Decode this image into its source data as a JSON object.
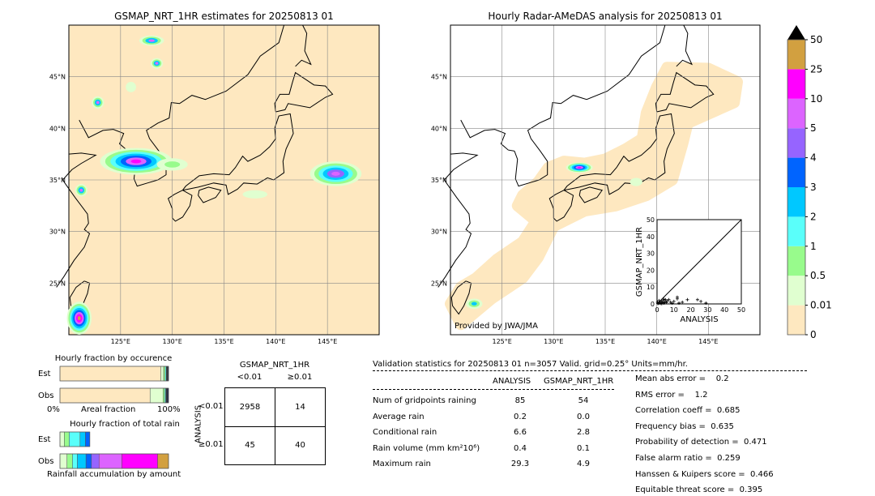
{
  "left_map": {
    "title": "GSMAP_NRT_1HR estimates for 20250813 01"
  },
  "right_map": {
    "title": "Hourly Radar-AMeDAS analysis for 20250813 01",
    "credit": "Provided by JWA/JMA"
  },
  "map_axes": {
    "lon_ticks": [
      "125°E",
      "130°E",
      "135°E",
      "140°E",
      "145°E"
    ],
    "lat_ticks": [
      "45°N",
      "40°N",
      "35°N",
      "30°N",
      "25°N"
    ],
    "lon_values": [
      125,
      130,
      135,
      140,
      145
    ],
    "lat_values": [
      45,
      40,
      35,
      30,
      25
    ],
    "extent": {
      "lon": [
        120,
        150
      ],
      "lat": [
        20,
        50
      ]
    }
  },
  "colorbar": {
    "ticks": [
      "0",
      "0.01",
      "0.5",
      "1",
      "2",
      "3",
      "4",
      "5",
      "10",
      "25",
      "50"
    ],
    "colors": [
      "#fee8c0",
      "#e0ffd0",
      "#98fb8c",
      "#5afffa",
      "#00c8ff",
      "#0064ff",
      "#9664ff",
      "#dc64ff",
      "#ff00ff",
      "#d2a040"
    ],
    "extend": "max"
  },
  "scatter": {
    "xlabel": "ANALYSIS",
    "ylabel": "GSMAP_NRT_1HR",
    "xlim": [
      0,
      50
    ],
    "ylim": [
      0,
      50
    ],
    "ticks": [
      "0",
      "10",
      "20",
      "30",
      "40",
      "50"
    ],
    "points": [
      [
        0.5,
        0.2
      ],
      [
        1,
        0.5
      ],
      [
        1.5,
        1
      ],
      [
        2,
        0.3
      ],
      [
        2.5,
        1.5
      ],
      [
        3,
        0.8
      ],
      [
        3.5,
        2
      ],
      [
        4,
        0.5
      ],
      [
        4.5,
        1.2
      ],
      [
        5,
        2.5
      ],
      [
        5.5,
        0.7
      ],
      [
        6,
        1.8
      ],
      [
        7,
        2.5
      ],
      [
        8,
        1
      ],
      [
        9,
        0.4
      ],
      [
        10,
        1.5
      ],
      [
        12,
        4
      ],
      [
        12,
        3
      ],
      [
        13,
        0.5
      ],
      [
        15,
        1
      ],
      [
        18,
        2.5
      ],
      [
        24,
        2.5
      ],
      [
        26,
        1.5
      ],
      [
        29,
        0.5
      ],
      [
        0.3,
        1
      ],
      [
        1.2,
        2
      ],
      [
        2.8,
        0.1
      ],
      [
        4,
        2.8
      ]
    ]
  },
  "occurrence": {
    "title": "Hourly fraction by occurence",
    "est_label": "Est",
    "obs_label": "Obs",
    "axis_left": "0%",
    "axis_mid": "Areal fraction",
    "axis_right": "100%",
    "est": [
      0.93,
      0.025,
      0.015,
      0.01,
      0.01,
      0.01
    ],
    "obs": [
      0.83,
      0.12,
      0.015,
      0.01,
      0.01,
      0.015
    ]
  },
  "total_rain": {
    "title": "Hourly fraction of total rain",
    "est_label": "Est",
    "obs_label": "Obs",
    "footer": "Rainfall accumulation by amount",
    "est": [
      0.0,
      0.04,
      0.045,
      0.1,
      0.05,
      0.04
    ],
    "obs": [
      0.0,
      0.065,
      0.05,
      0.045,
      0.08,
      0.05,
      0.07,
      0.21,
      0.33,
      0.1
    ]
  },
  "contingency": {
    "title": "GSMAP_NRT_1HR",
    "col_labels": [
      "<0.01",
      "≥0.01"
    ],
    "row_axis": "ANALYSIS",
    "row_labels": [
      "<0.01",
      "≥0.01"
    ],
    "cells": [
      [
        "2958",
        "14"
      ],
      [
        "45",
        "40"
      ]
    ]
  },
  "stats": {
    "header": "Validation statistics for 20250813 01  n=3057 Valid. grid=0.25° Units=mm/hr.",
    "col_analysis": "ANALYSIS",
    "col_gsmap": "GSMAP_NRT_1HR",
    "rows": [
      {
        "label": "Num of gridpoints raining",
        "analysis": "85",
        "gsmap": "54"
      },
      {
        "label": "Average rain",
        "analysis": "0.2",
        "gsmap": "0.0"
      },
      {
        "label": "Conditional rain",
        "analysis": "6.6",
        "gsmap": "2.8"
      },
      {
        "label": "Rain volume (mm km²10⁶)",
        "analysis": "0.4",
        "gsmap": "0.1"
      },
      {
        "label": "Maximum rain",
        "analysis": "29.3",
        "gsmap": "4.9"
      }
    ],
    "scores": [
      "Mean abs error =    0.2",
      "RMS error =    1.2",
      "Correlation coeff =  0.685",
      "Frequency bias =  0.635",
      "Probability of detection =  0.471",
      "False alarm ratio =  0.259",
      "Hanssen & Kuipers score =  0.466",
      "Equitable threat score =  0.395"
    ]
  }
}
